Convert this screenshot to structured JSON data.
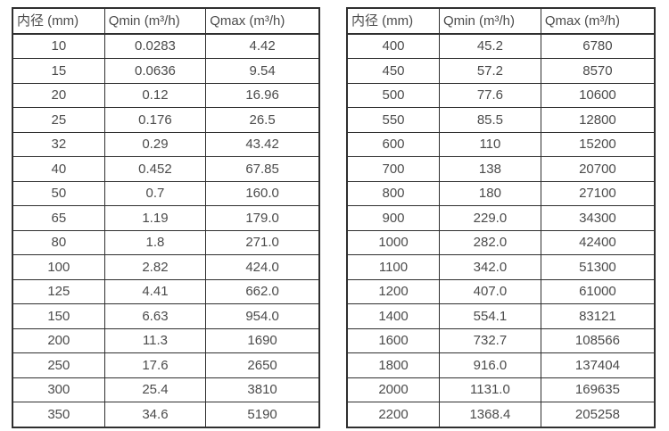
{
  "page": {
    "background": "#ffffff",
    "text_color": "#4b4b4b",
    "border_color": "#2f2f2f"
  },
  "tables": [
    {
      "title": "small-diameter-flow-range",
      "headers": [
        "内径 (mm)",
        "Qmin (m³/h)",
        "Qmax (m³/h)"
      ],
      "rows": [
        [
          "10",
          "0.0283",
          "4.42"
        ],
        [
          "15",
          "0.0636",
          "9.54"
        ],
        [
          "20",
          "0.12",
          "16.96"
        ],
        [
          "25",
          "0.176",
          "26.5"
        ],
        [
          "32",
          "0.29",
          "43.42"
        ],
        [
          "40",
          "0.452",
          "67.85"
        ],
        [
          "50",
          "0.7",
          "160.0"
        ],
        [
          "65",
          "1.19",
          "179.0"
        ],
        [
          "80",
          "1.8",
          "271.0"
        ],
        [
          "100",
          "2.82",
          "424.0"
        ],
        [
          "125",
          "4.41",
          "662.0"
        ],
        [
          "150",
          "6.63",
          "954.0"
        ],
        [
          "200",
          "11.3",
          "1690"
        ],
        [
          "250",
          "17.6",
          "2650"
        ],
        [
          "300",
          "25.4",
          "3810"
        ],
        [
          "350",
          "34.6",
          "5190"
        ]
      ]
    },
    {
      "title": "large-diameter-flow-range",
      "headers": [
        "内径 (mm)",
        "Qmin (m³/h)",
        "Qmax (m³/h)"
      ],
      "rows": [
        [
          "400",
          "45.2",
          "6780"
        ],
        [
          "450",
          "57.2",
          "8570"
        ],
        [
          "500",
          "77.6",
          "10600"
        ],
        [
          "550",
          "85.5",
          "12800"
        ],
        [
          "600",
          "110",
          "15200"
        ],
        [
          "700",
          "138",
          "20700"
        ],
        [
          "800",
          "180",
          "27100"
        ],
        [
          "900",
          "229.0",
          "34300"
        ],
        [
          "1000",
          "282.0",
          "42400"
        ],
        [
          "1100",
          "342.0",
          "51300"
        ],
        [
          "1200",
          "407.0",
          "61000"
        ],
        [
          "1400",
          "554.1",
          "83121"
        ],
        [
          "1600",
          "732.7",
          "108566"
        ],
        [
          "1800",
          "916.0",
          "137404"
        ],
        [
          "2000",
          "1131.0",
          "169635"
        ],
        [
          "2200",
          "1368.4",
          "205258"
        ]
      ]
    }
  ]
}
